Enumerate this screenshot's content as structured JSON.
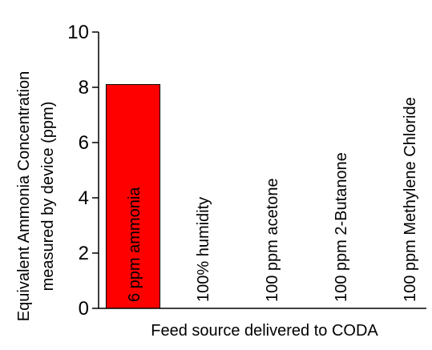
{
  "chart_data": {
    "type": "bar",
    "ylabel": [
      "Equivalent Ammonia Concentration",
      "measured by device (ppm)"
    ],
    "xlabel": "Feed source delivered to CODA",
    "categories": [
      "6 ppm ammonia",
      "100% humidity",
      "100 ppm acetone",
      "100 ppm 2-Butanone",
      "100 ppm Methylene Chloride"
    ],
    "values": [
      8.1,
      0,
      0,
      0,
      0
    ],
    "color": "#ff0000",
    "ylim": [
      0,
      10
    ],
    "yticks": [
      0,
      2,
      4,
      6,
      8,
      10
    ],
    "grid": false
  }
}
